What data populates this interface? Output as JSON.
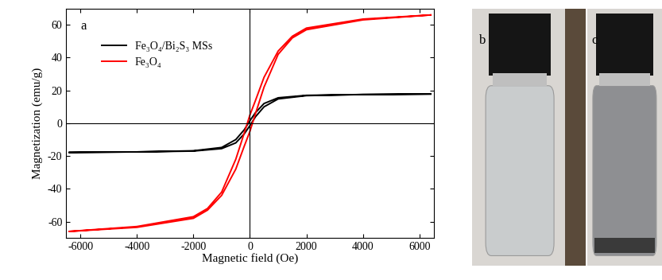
{
  "chart_data": {
    "type": "line",
    "panel_label": "a",
    "x_label": "Magnetic field (Oe)",
    "y_label": "Magnetization (emu/g)",
    "xlim": [
      -6500,
      6500
    ],
    "xticks": [
      -6000,
      -4000,
      -2000,
      0,
      2000,
      4000,
      6000
    ],
    "ylim": [
      -70,
      70
    ],
    "yticks": [
      -60,
      -40,
      -20,
      0,
      20,
      40,
      60
    ],
    "legend": "upper left",
    "grid": false,
    "series": [
      {
        "name": "Fe₃O₄/Bi₂S₃ MSs",
        "color": "#000000",
        "x": [
          6400,
          4000,
          2000,
          1000,
          500,
          200,
          0,
          -200,
          -500,
          -1000,
          -2000,
          -4000,
          -6400,
          -4000,
          -2000,
          -1000,
          -500,
          -200,
          0,
          200,
          500,
          1000,
          2000,
          4000,
          6400
        ],
        "values": [
          17.8,
          17.5,
          17.0,
          15.5,
          12.0,
          6.5,
          1.5,
          -4.0,
          -10.0,
          -14.8,
          -16.8,
          -17.5,
          -17.8,
          -17.5,
          -17.0,
          -15.5,
          -12.0,
          -6.5,
          -1.5,
          4.0,
          10.0,
          14.8,
          16.8,
          17.5,
          17.8
        ]
      },
      {
        "name": "Fe₃O₄",
        "color": "#ff0000",
        "x": [
          6400,
          4000,
          2000,
          1500,
          1000,
          500,
          200,
          0,
          -200,
          -500,
          -1000,
          -1500,
          -2000,
          -4000,
          -6400,
          -4000,
          -2000,
          -1500,
          -1000,
          -500,
          -200,
          0,
          200,
          500,
          1000,
          1500,
          2000,
          4000,
          6400
        ],
        "values": [
          66,
          63.5,
          58,
          53,
          44,
          28,
          14,
          5,
          -6,
          -22,
          -42,
          -52,
          -57,
          -63,
          -66,
          -63.5,
          -58,
          -53,
          -44,
          -28,
          -14,
          -5,
          6,
          22,
          42,
          52,
          57,
          63,
          66
        ]
      }
    ]
  },
  "photo_panels": [
    "b",
    "c"
  ]
}
